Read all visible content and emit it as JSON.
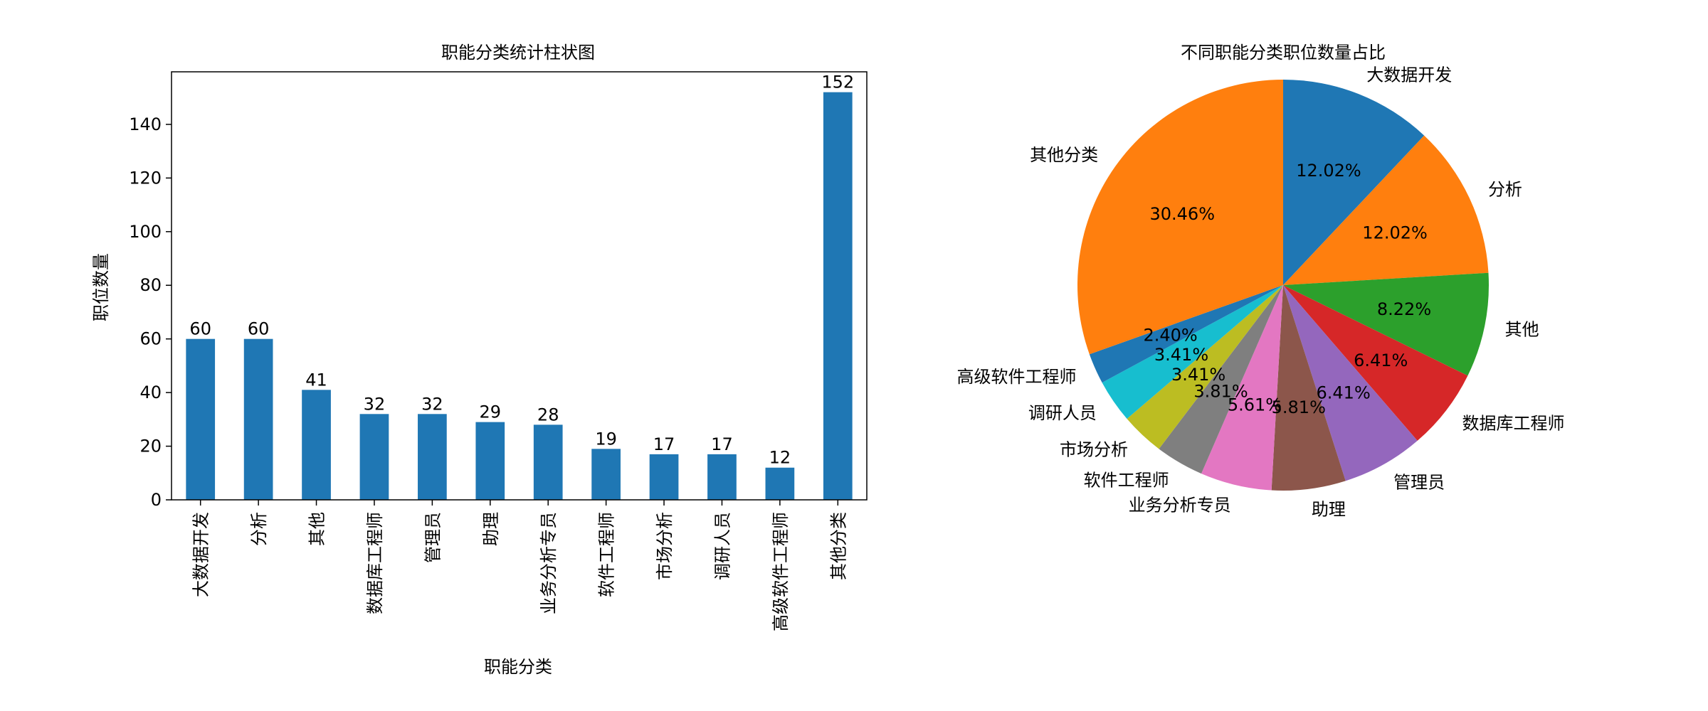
{
  "chart_data": [
    {
      "type": "bar",
      "title": "职能分类统计柱状图",
      "xlabel": "职能分类",
      "ylabel": "职位数量",
      "categories": [
        "大数据开发",
        "分析",
        "其他",
        "数据库工程师",
        "管理员",
        "助理",
        "业务分析专员",
        "软件工程师",
        "市场分析",
        "调研人员",
        "高级软件工程师",
        "其他分类"
      ],
      "values": [
        60,
        60,
        41,
        32,
        32,
        29,
        28,
        19,
        17,
        17,
        12,
        152
      ],
      "data_labels": [
        "60",
        "60",
        "41",
        "32",
        "32",
        "29",
        "28",
        "19",
        "17",
        "17",
        "12",
        "152"
      ],
      "ylim": [
        0,
        159.6
      ],
      "yticks": [
        0,
        20,
        40,
        60,
        80,
        100,
        120,
        140
      ],
      "ytick_labels": [
        "0",
        "20",
        "40",
        "60",
        "80",
        "100",
        "120",
        "140"
      ],
      "color": "#1f77b4",
      "grid": false
    },
    {
      "type": "pie",
      "title": "不同职能分类职位数量占比",
      "labels": [
        "大数据开发",
        "分析",
        "其他",
        "数据库工程师",
        "管理员",
        "助理",
        "业务分析专员",
        "软件工程师",
        "市场分析",
        "调研人员",
        "高级软件工程师",
        "其他分类"
      ],
      "values": [
        60,
        60,
        41,
        32,
        32,
        29,
        28,
        19,
        17,
        17,
        12,
        152
      ],
      "percent_labels": [
        "12.02%",
        "12.02%",
        "8.22%",
        "6.41%",
        "6.41%",
        "5.81%",
        "5.61%",
        "3.81%",
        "3.41%",
        "3.41%",
        "2.40%",
        "30.46%"
      ],
      "colors": [
        "#1f77b4",
        "#ff7f0e",
        "#2ca02c",
        "#d62728",
        "#9467bd",
        "#8c564b",
        "#e377c2",
        "#7f7f7f",
        "#bcbd22",
        "#17becf",
        "#1f77b4",
        "#ff7f0e"
      ],
      "start_angle": 90,
      "direction": "clockwise"
    }
  ]
}
